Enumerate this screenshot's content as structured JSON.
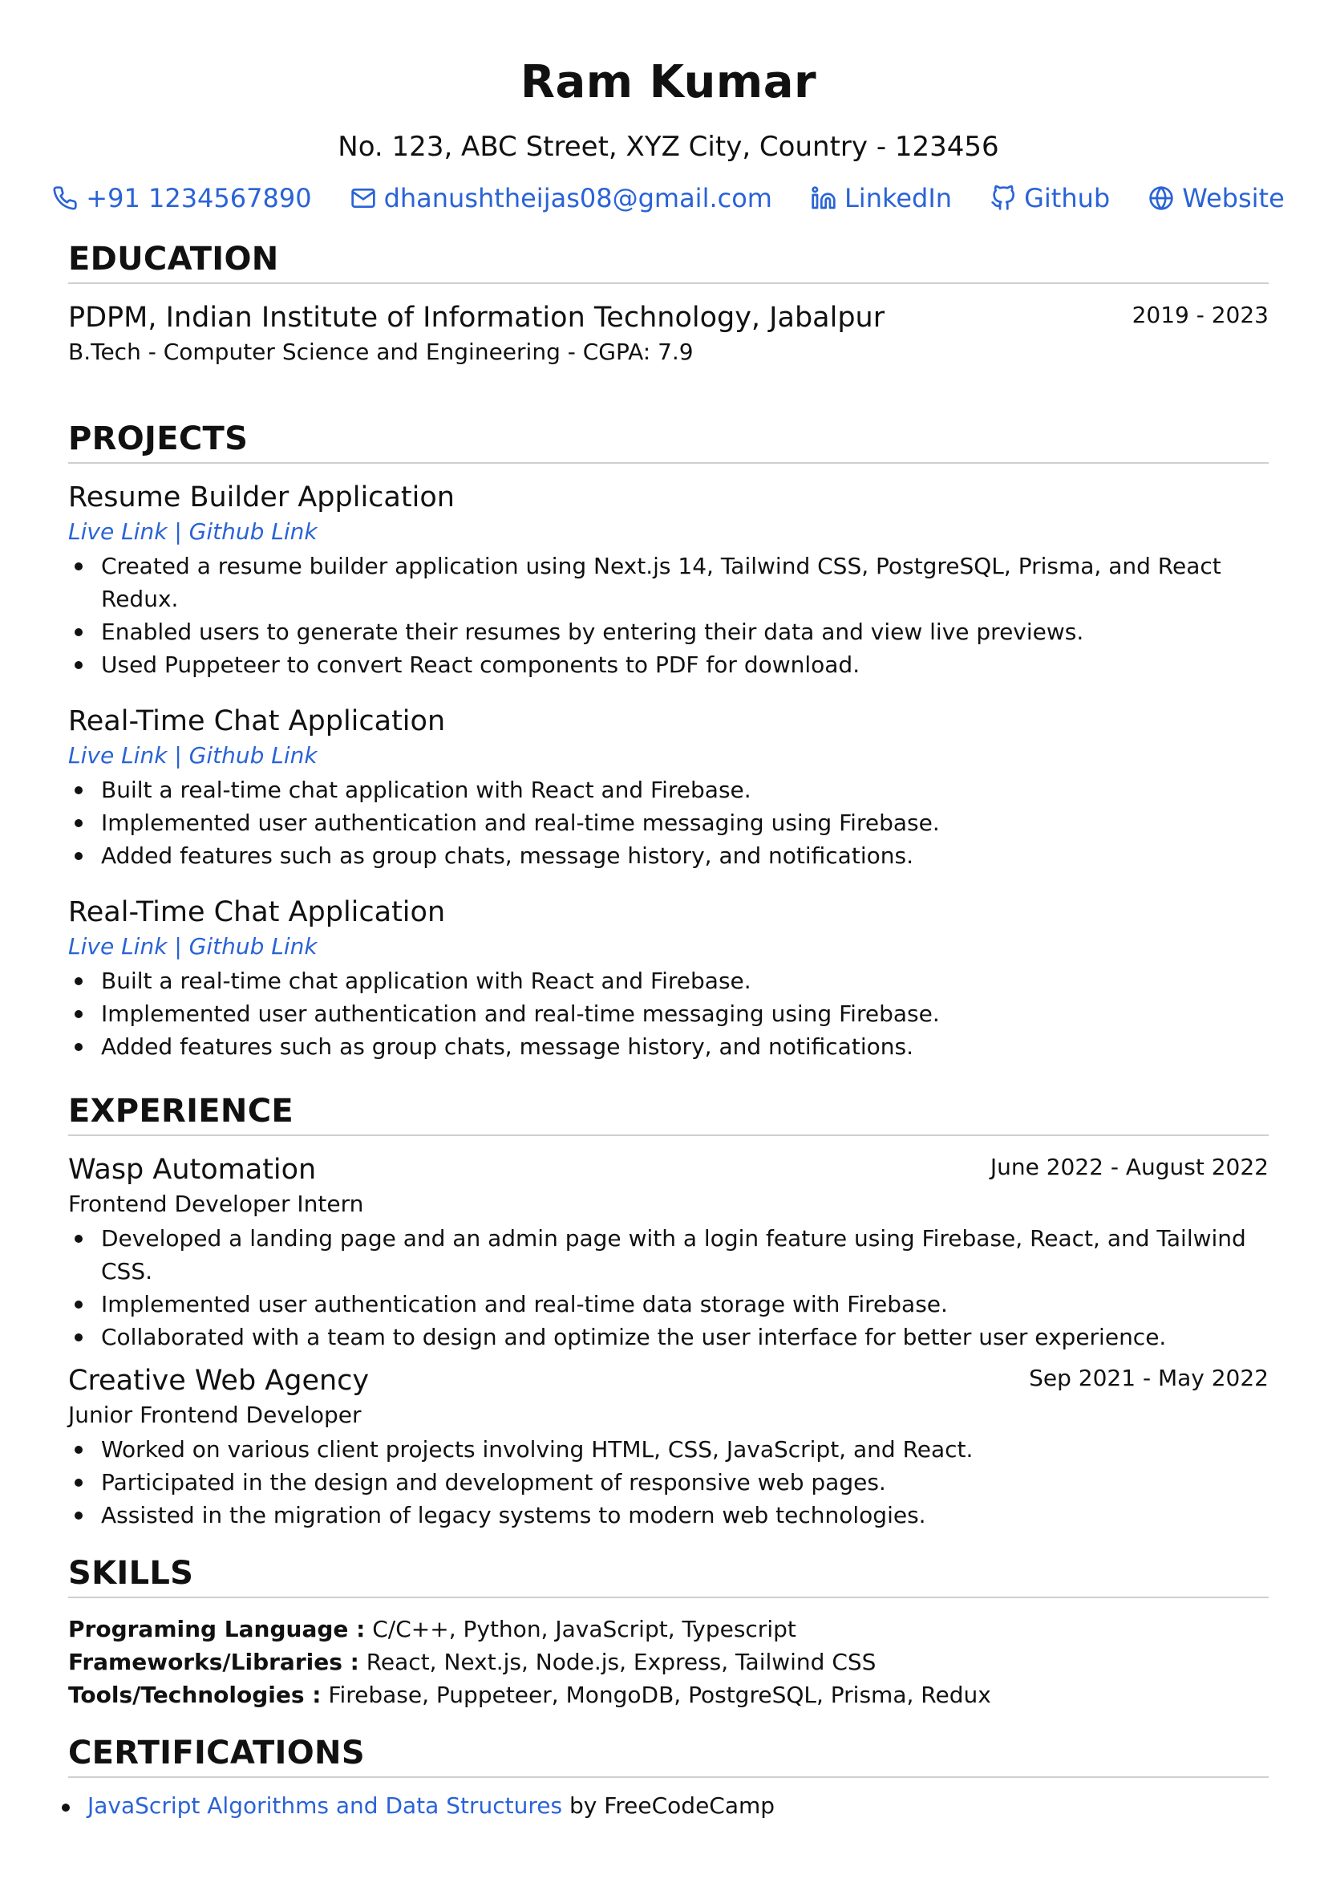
{
  "header": {
    "name": "Ram Kumar",
    "address": "No. 123, ABC Street, XYZ City, Country - 123456",
    "contacts": [
      {
        "icon": "phone-icon",
        "label": "+91 1234567890"
      },
      {
        "icon": "mail-icon",
        "label": "dhanushtheijas08@gmail.com"
      },
      {
        "icon": "linkedin-icon",
        "label": "LinkedIn"
      },
      {
        "icon": "github-icon",
        "label": "Github"
      },
      {
        "icon": "globe-icon",
        "label": "Website"
      }
    ]
  },
  "education": {
    "title": "EDUCATION",
    "items": [
      {
        "school": "PDPM, Indian Institute of Information Technology, Jabalpur",
        "date": "2019 - 2023",
        "detail": "B.Tech - Computer Science and Engineering - CGPA: 7.9"
      }
    ]
  },
  "projects": {
    "title": "PROJECTS",
    "items": [
      {
        "name": "Resume Builder Application",
        "live": "Live Link",
        "sep": " | ",
        "github": "Github Link",
        "bullets": [
          "Created a resume builder application using Next.js 14, Tailwind CSS, PostgreSQL, Prisma, and React Redux.",
          "Enabled users to generate their resumes by entering their data and view live previews.",
          "Used Puppeteer to convert React components to PDF for download."
        ]
      },
      {
        "name": "Real-Time Chat Application",
        "live": "Live Link",
        "sep": " | ",
        "github": "Github Link",
        "bullets": [
          "Built a real-time chat application with React and Firebase.",
          "Implemented user authentication and real-time messaging using Firebase.",
          "Added features such as group chats, message history, and notifications."
        ]
      },
      {
        "name": "Real-Time Chat Application",
        "live": "Live Link",
        "sep": " | ",
        "github": "Github Link",
        "bullets": [
          "Built a real-time chat application with React and Firebase.",
          "Implemented user authentication and real-time messaging using Firebase.",
          "Added features such as group chats, message history, and notifications."
        ]
      }
    ]
  },
  "experience": {
    "title": "EXPERIENCE",
    "items": [
      {
        "company": "Wasp Automation",
        "date": "June 2022 - August 2022",
        "role": "Frontend Developer Intern",
        "bullets": [
          "Developed a landing page and an admin page with a login feature using Firebase, React, and Tailwind CSS.",
          "Implemented user authentication and real-time data storage with Firebase.",
          "Collaborated with a team to design and optimize the user interface for better user experience."
        ]
      },
      {
        "company": "Creative Web Agency",
        "date": "Sep 2021 - May 2022",
        "role": "Junior Frontend Developer",
        "bullets": [
          "Worked on various client projects involving HTML, CSS, JavaScript, and React.",
          "Participated in the design and development of responsive web pages.",
          "Assisted in the migration of legacy systems to modern web technologies."
        ]
      }
    ]
  },
  "skills": {
    "title": "SKILLS",
    "items": [
      {
        "label": "Programing Language :",
        "value": " C/C++, Python, JavaScript, Typescript"
      },
      {
        "label": "Frameworks/Libraries :",
        "value": " React, Next.js, Node.js, Express, Tailwind CSS"
      },
      {
        "label": "Tools/Technologies :",
        "value": " Firebase, Puppeteer, MongoDB, PostgreSQL, Prisma, Redux"
      }
    ]
  },
  "certifications": {
    "title": "CERTIFICATIONS",
    "items": [
      {
        "name": "JavaScript Algorithms and Data Structures",
        "by": " by FreeCodeCamp"
      }
    ]
  }
}
